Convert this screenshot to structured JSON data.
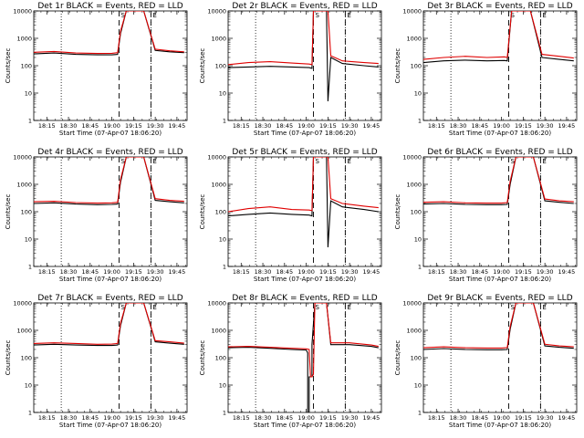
{
  "figure": {
    "background": "#ffffff",
    "black_color": "#000000",
    "red_color": "#e00000"
  },
  "chart_data": [
    {
      "type": "line",
      "title": "Det 1r BLACK = Events, RED = LLD",
      "xlabel": "Start Time (07-Apr-07 18:06:20)",
      "ylabel": "Counts/sec",
      "yscale": "log",
      "ylim": [
        1,
        10000
      ],
      "ytick_labels": [
        "1",
        "10",
        "100",
        "1000",
        "10000"
      ],
      "xtick_labels": [
        "18:15",
        "18:30",
        "18:45",
        "19:00",
        "19:15",
        "19:30",
        "19:45"
      ],
      "xlim": [
        "18:06",
        "19:52"
      ],
      "flags": [
        "S",
        "E"
      ],
      "dotted_times": [
        "18:25",
        "19:27"
      ],
      "dashed_times": [
        "19:05",
        "19:27"
      ],
      "series": [
        {
          "color": "black",
          "x": [
            "18:06",
            "18:20",
            "18:35",
            "18:50",
            "19:00",
            "19:04",
            "19:06",
            "19:10",
            "19:18",
            "19:22",
            "19:30",
            "19:40",
            "19:50"
          ],
          "values": [
            270,
            290,
            260,
            250,
            250,
            260,
            1500,
            10000,
            10000,
            10000,
            360,
            320,
            300
          ]
        },
        {
          "color": "red",
          "x": [
            "18:06",
            "18:20",
            "18:35",
            "18:50",
            "19:00",
            "19:04",
            "19:06",
            "19:10",
            "19:18",
            "19:22",
            "19:30",
            "19:40",
            "19:50"
          ],
          "values": [
            310,
            330,
            290,
            280,
            285,
            300,
            1800,
            10000,
            10000,
            10000,
            400,
            350,
            320
          ]
        }
      ]
    },
    {
      "type": "line",
      "title": "Det 2r BLACK = Events, RED = LLD",
      "xlabel": "Start Time (07-Apr-07 18:06:20)",
      "ylabel": "Counts/sec",
      "yscale": "log",
      "ylim": [
        1,
        10000
      ],
      "ytick_labels": [
        "1",
        "10",
        "100",
        "1000",
        "10000"
      ],
      "xtick_labels": [
        "18:15",
        "18:30",
        "18:45",
        "19:00",
        "19:15",
        "19:30",
        "19:45"
      ],
      "xlim": [
        "18:06",
        "19:52"
      ],
      "flags": [
        "S",
        "E"
      ],
      "dotted_times": [
        "18:25",
        "19:27"
      ],
      "dashed_times": [
        "19:05",
        "19:27"
      ],
      "series": [
        {
          "color": "black",
          "x": [
            "18:06",
            "18:20",
            "18:35",
            "18:50",
            "19:02",
            "19:04",
            "19:05",
            "19:14",
            "19:15",
            "19:17",
            "19:25",
            "19:40",
            "19:50"
          ],
          "values": [
            85,
            90,
            95,
            90,
            85,
            80,
            10000,
            10000,
            5,
            200,
            120,
            100,
            90
          ]
        },
        {
          "color": "red",
          "x": [
            "18:06",
            "18:20",
            "18:35",
            "18:50",
            "19:02",
            "19:04",
            "19:05",
            "19:14",
            "19:15",
            "19:17",
            "19:25",
            "19:40",
            "19:50"
          ],
          "values": [
            110,
            130,
            140,
            125,
            115,
            110,
            10000,
            10000,
            10000,
            230,
            150,
            130,
            120
          ]
        }
      ]
    },
    {
      "type": "line",
      "title": "Det 3r BLACK = Events, RED = LLD",
      "xlabel": "Start Time (07-Apr-07 18:06:20)",
      "ylabel": "Counts/sec",
      "yscale": "log",
      "ylim": [
        1,
        10000
      ],
      "ytick_labels": [
        "1",
        "10",
        "100",
        "1000",
        "10000"
      ],
      "xtick_labels": [
        "18:15",
        "18:30",
        "18:45",
        "19:00",
        "19:15",
        "19:30",
        "19:45"
      ],
      "xlim": [
        "18:06",
        "19:52"
      ],
      "flags": [
        "S",
        "E"
      ],
      "dotted_times": [
        "18:25",
        "19:27"
      ],
      "dashed_times": [
        "19:05",
        "19:27"
      ],
      "series": [
        {
          "color": "black",
          "x": [
            "18:06",
            "18:20",
            "18:35",
            "18:50",
            "19:02",
            "19:04",
            "19:07",
            "19:18",
            "19:20",
            "19:28",
            "19:40",
            "19:50"
          ],
          "values": [
            130,
            150,
            160,
            150,
            155,
            150,
            10000,
            10000,
            10000,
            200,
            170,
            150
          ]
        },
        {
          "color": "red",
          "x": [
            "18:06",
            "18:20",
            "18:35",
            "18:50",
            "19:02",
            "19:04",
            "19:07",
            "19:18",
            "19:20",
            "19:28",
            "19:40",
            "19:50"
          ],
          "values": [
            170,
            200,
            220,
            200,
            210,
            200,
            10000,
            10000,
            10000,
            260,
            220,
            190
          ]
        }
      ]
    },
    {
      "type": "line",
      "title": "Det 4r BLACK = Events, RED = LLD",
      "xlabel": "Start Time (07-Apr-07 18:06:20)",
      "ylabel": "Counts/sec",
      "yscale": "log",
      "ylim": [
        1,
        10000
      ],
      "ytick_labels": [
        "1",
        "10",
        "100",
        "1000",
        "10000"
      ],
      "xtick_labels": [
        "18:15",
        "18:30",
        "18:45",
        "19:00",
        "19:15",
        "19:30",
        "19:45"
      ],
      "xlim": [
        "18:06",
        "19:52"
      ],
      "flags": [
        "S",
        "E"
      ],
      "dotted_times": [
        "18:25",
        "19:27"
      ],
      "dashed_times": [
        "19:05",
        "19:27"
      ],
      "series": [
        {
          "color": "black",
          "x": [
            "18:06",
            "18:20",
            "18:35",
            "18:50",
            "19:00",
            "19:04",
            "19:06",
            "19:10",
            "19:18",
            "19:22",
            "19:30",
            "19:40",
            "19:50"
          ],
          "values": [
            200,
            210,
            190,
            180,
            185,
            190,
            1200,
            10000,
            10000,
            10000,
            260,
            230,
            210
          ]
        },
        {
          "color": "red",
          "x": [
            "18:06",
            "18:20",
            "18:35",
            "18:50",
            "19:00",
            "19:04",
            "19:06",
            "19:10",
            "19:18",
            "19:22",
            "19:30",
            "19:40",
            "19:50"
          ],
          "values": [
            230,
            240,
            215,
            205,
            210,
            220,
            1500,
            10000,
            10000,
            10000,
            300,
            260,
            240
          ]
        }
      ]
    },
    {
      "type": "line",
      "title": "Det 5r BLACK = Events, RED = LLD",
      "xlabel": "Start Time (07-Apr-07 18:06:20)",
      "ylabel": "Counts/sec",
      "yscale": "log",
      "ylim": [
        1,
        10000
      ],
      "ytick_labels": [
        "1",
        "10",
        "100",
        "1000",
        "10000"
      ],
      "xtick_labels": [
        "18:15",
        "18:30",
        "18:45",
        "19:00",
        "19:15",
        "19:30",
        "19:45"
      ],
      "xlim": [
        "18:06",
        "19:52"
      ],
      "flags": [
        "S",
        "E"
      ],
      "dotted_times": [
        "18:25",
        "19:27"
      ],
      "dashed_times": [
        "19:05",
        "19:27"
      ],
      "series": [
        {
          "color": "black",
          "x": [
            "18:06",
            "18:20",
            "18:35",
            "18:50",
            "19:02",
            "19:04",
            "19:05",
            "19:14",
            "19:15",
            "19:17",
            "19:25",
            "19:40",
            "19:50"
          ],
          "values": [
            70,
            80,
            90,
            80,
            75,
            70,
            10000,
            10000,
            5,
            250,
            150,
            120,
            100
          ]
        },
        {
          "color": "red",
          "x": [
            "18:06",
            "18:20",
            "18:35",
            "18:50",
            "19:02",
            "19:04",
            "19:05",
            "19:14",
            "19:15",
            "19:17",
            "19:25",
            "19:40",
            "19:50"
          ],
          "values": [
            100,
            130,
            150,
            120,
            115,
            110,
            10000,
            10000,
            10000,
            300,
            200,
            160,
            140
          ]
        }
      ]
    },
    {
      "type": "line",
      "title": "Det 6r BLACK = Events, RED = LLD",
      "xlabel": "Start Time (07-Apr-07 18:06:20)",
      "ylabel": "Counts/sec",
      "yscale": "log",
      "ylim": [
        1,
        10000
      ],
      "ytick_labels": [
        "1",
        "10",
        "100",
        "1000",
        "10000"
      ],
      "xtick_labels": [
        "18:15",
        "18:30",
        "18:45",
        "19:00",
        "19:15",
        "19:30",
        "19:45"
      ],
      "xlim": [
        "18:06",
        "19:52"
      ],
      "flags": [
        "S",
        "E"
      ],
      "dotted_times": [
        "18:25",
        "19:27"
      ],
      "dashed_times": [
        "19:05",
        "19:27"
      ],
      "series": [
        {
          "color": "black",
          "x": [
            "18:06",
            "18:20",
            "18:35",
            "18:50",
            "19:00",
            "19:04",
            "19:06",
            "19:10",
            "19:18",
            "19:22",
            "19:30",
            "19:40",
            "19:50"
          ],
          "values": [
            190,
            200,
            185,
            180,
            180,
            185,
            1000,
            10000,
            10000,
            10000,
            250,
            220,
            200
          ]
        },
        {
          "color": "red",
          "x": [
            "18:06",
            "18:20",
            "18:35",
            "18:50",
            "19:00",
            "19:04",
            "19:06",
            "19:10",
            "19:18",
            "19:22",
            "19:30",
            "19:40",
            "19:50"
          ],
          "values": [
            220,
            230,
            210,
            205,
            205,
            215,
            1300,
            10000,
            10000,
            10000,
            290,
            250,
            230
          ]
        }
      ]
    },
    {
      "type": "line",
      "title": "Det 7r BLACK = Events, RED = LLD",
      "xlabel": "Start Time (07-Apr-07 18:06:20)",
      "ylabel": "Counts/sec",
      "yscale": "log",
      "ylim": [
        1,
        10000
      ],
      "ytick_labels": [
        "1",
        "10",
        "100",
        "1000",
        "10000"
      ],
      "xtick_labels": [
        "18:15",
        "18:30",
        "18:45",
        "19:00",
        "19:15",
        "19:30",
        "19:45"
      ],
      "xlim": [
        "18:06",
        "19:52"
      ],
      "flags": [
        "S",
        "E"
      ],
      "dotted_times": [
        "18:25",
        "19:27"
      ],
      "dashed_times": [
        "19:05",
        "19:27"
      ],
      "series": [
        {
          "color": "black",
          "x": [
            "18:06",
            "18:20",
            "18:35",
            "18:50",
            "19:00",
            "19:04",
            "19:06",
            "19:10",
            "19:18",
            "19:22",
            "19:30",
            "19:40",
            "19:50"
          ],
          "values": [
            290,
            310,
            290,
            280,
            280,
            290,
            1500,
            10000,
            10000,
            10000,
            380,
            340,
            310
          ]
        },
        {
          "color": "red",
          "x": [
            "18:06",
            "18:20",
            "18:35",
            "18:50",
            "19:00",
            "19:04",
            "19:06",
            "19:10",
            "19:18",
            "19:22",
            "19:30",
            "19:40",
            "19:50"
          ],
          "values": [
            330,
            350,
            330,
            310,
            315,
            330,
            1800,
            10000,
            10000,
            10000,
            420,
            380,
            340
          ]
        }
      ]
    },
    {
      "type": "line",
      "title": "Det 8r BLACK = Events, RED = LLD",
      "xlabel": "Start Time (07-Apr-07 18:06:20)",
      "ylabel": "Counts/sec",
      "yscale": "log",
      "ylim": [
        1,
        10000
      ],
      "ytick_labels": [
        "1",
        "10",
        "100",
        "1000",
        "10000"
      ],
      "xtick_labels": [
        "18:15",
        "18:30",
        "18:45",
        "19:00",
        "19:15",
        "19:30",
        "19:45"
      ],
      "xlim": [
        "18:06",
        "19:52"
      ],
      "flags": [
        "S",
        "E"
      ],
      "dotted_times": [
        "18:25",
        "19:27"
      ],
      "dashed_times": [
        "19:05",
        "19:27"
      ],
      "series": [
        {
          "color": "black",
          "x": [
            "18:06",
            "18:20",
            "18:35",
            "18:50",
            "19:00",
            "19:01",
            "19:01",
            "19:02",
            "19:02",
            "19:04",
            "19:04",
            "19:06",
            "19:14",
            "19:17",
            "19:30",
            "19:45",
            "19:50"
          ],
          "values": [
            230,
            240,
            220,
            200,
            190,
            150,
            1,
            1,
            20,
            20,
            300,
            10000,
            10000,
            300,
            300,
            260,
            230
          ]
        },
        {
          "color": "red",
          "x": [
            "18:06",
            "18:20",
            "18:35",
            "18:50",
            "19:00",
            "19:02",
            "19:03",
            "19:04",
            "19:05",
            "19:06",
            "19:14",
            "19:17",
            "19:30",
            "19:45",
            "19:50"
          ],
          "values": [
            250,
            260,
            240,
            220,
            210,
            200,
            20,
            20,
            25,
            10000,
            10000,
            350,
            350,
            290,
            260
          ]
        }
      ]
    },
    {
      "type": "line",
      "title": "Det 9r BLACK = Events, RED = LLD",
      "xlabel": "Start Time (07-Apr-07 18:06:20)",
      "ylabel": "Counts/sec",
      "yscale": "log",
      "ylim": [
        1,
        10000
      ],
      "ytick_labels": [
        "1",
        "10",
        "100",
        "1000",
        "10000"
      ],
      "xtick_labels": [
        "18:15",
        "18:30",
        "18:45",
        "19:00",
        "19:15",
        "19:30",
        "19:45"
      ],
      "xlim": [
        "18:06",
        "19:52"
      ],
      "flags": [
        "S",
        "E"
      ],
      "dotted_times": [
        "18:25",
        "19:27"
      ],
      "dashed_times": [
        "19:05",
        "19:27"
      ],
      "series": [
        {
          "color": "black",
          "x": [
            "18:06",
            "18:20",
            "18:35",
            "18:50",
            "19:00",
            "19:04",
            "19:06",
            "19:10",
            "19:18",
            "19:22",
            "19:30",
            "19:40",
            "19:50"
          ],
          "values": [
            200,
            215,
            200,
            195,
            195,
            200,
            1100,
            10000,
            10000,
            10000,
            270,
            240,
            220
          ]
        },
        {
          "color": "red",
          "x": [
            "18:06",
            "18:20",
            "18:35",
            "18:50",
            "19:00",
            "19:04",
            "19:06",
            "19:10",
            "19:18",
            "19:22",
            "19:30",
            "19:40",
            "19:50"
          ],
          "values": [
            230,
            250,
            230,
            225,
            225,
            235,
            1400,
            10000,
            10000,
            10000,
            310,
            270,
            250
          ]
        }
      ]
    }
  ]
}
